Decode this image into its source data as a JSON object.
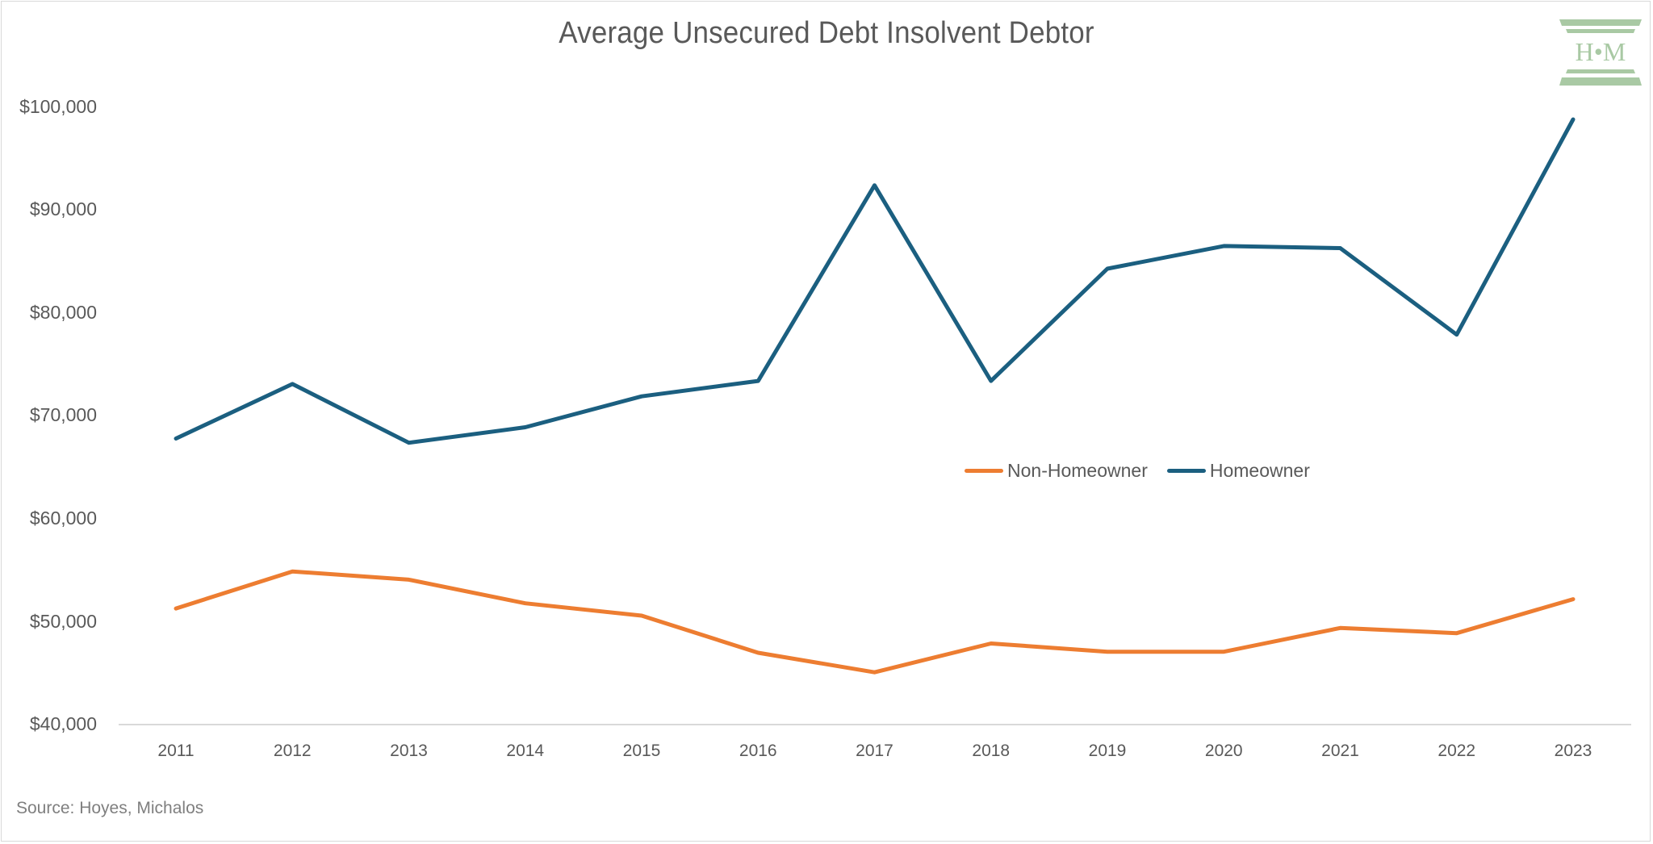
{
  "chart_data": {
    "type": "line",
    "title": "Average Unsecured Debt Insolvent Debtor",
    "xlabel": "",
    "ylabel": "",
    "categories": [
      "2011",
      "2012",
      "2013",
      "2014",
      "2015",
      "2016",
      "2017",
      "2018",
      "2019",
      "2020",
      "2021",
      "2022",
      "2023"
    ],
    "series": [
      {
        "name": "Non-Homeowner",
        "color": "#ED7D31",
        "values": [
          51200,
          54800,
          54000,
          51700,
          50500,
          46900,
          45000,
          47800,
          47000,
          47000,
          49300,
          48800,
          52100
        ]
      },
      {
        "name": "Homeowner",
        "color": "#1B5F80",
        "values": [
          67700,
          73000,
          67300,
          68800,
          71800,
          73300,
          92300,
          73300,
          84200,
          86400,
          86200,
          77800,
          98700
        ]
      }
    ],
    "ylim": [
      40000,
      100000
    ],
    "yticks": [
      "$40,000",
      "$50,000",
      "$60,000",
      "$70,000",
      "$80,000",
      "$90,000",
      "$100,000"
    ],
    "ytick_values": [
      40000,
      50000,
      60000,
      70000,
      80000,
      90000,
      100000
    ],
    "grid": false,
    "legend_position": "inside-center-right",
    "annotations": [
      "Source: Hoyes, Michalos"
    ]
  },
  "header": {
    "title": "Average Unsecured Debt Insolvent Debtor"
  },
  "logo": {
    "text": "H•M",
    "color": "#A9C9A4"
  },
  "legend": {
    "items": [
      {
        "label": "Non-Homeowner",
        "color": "#ED7D31"
      },
      {
        "label": "Homeowner",
        "color": "#1B5F80"
      }
    ]
  },
  "footer": {
    "source": "Source: Hoyes, Michalos"
  }
}
